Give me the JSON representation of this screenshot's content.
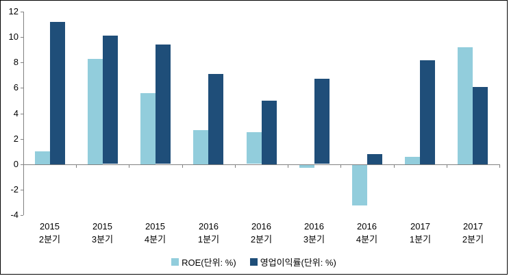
{
  "chart_data": {
    "type": "bar",
    "title": "",
    "xlabel": "",
    "ylabel": "",
    "categories": [
      "2015 2분기",
      "2015 3분기",
      "2015 4분기",
      "2016 1분기",
      "2016 2분기",
      "2016 3분기",
      "2016 4분기",
      "2017 1분기",
      "2017 2분기"
    ],
    "series": [
      {
        "name": "ROE(단위: %)",
        "color": "#92CDDC",
        "values": [
          1.0,
          8.3,
          5.6,
          2.7,
          2.5,
          -0.2,
          -3.2,
          0.6,
          9.2
        ]
      },
      {
        "name": "영업이익률(단위: %)",
        "color": "#1F4E79",
        "values": [
          11.2,
          10.1,
          9.4,
          7.1,
          5.0,
          6.7,
          0.8,
          8.2,
          6.1
        ]
      }
    ],
    "y_axis": {
      "min": -4,
      "max": 12,
      "tick_step": 2,
      "tick_labels": [
        "12",
        "10",
        "8",
        "6",
        "4",
        "2",
        "0",
        "-2",
        "-4"
      ]
    },
    "legend": {
      "position": "bottom"
    },
    "grid": false,
    "axis_color": "#808080",
    "text_color": "#000000",
    "background_color": "#FFFFFF"
  }
}
